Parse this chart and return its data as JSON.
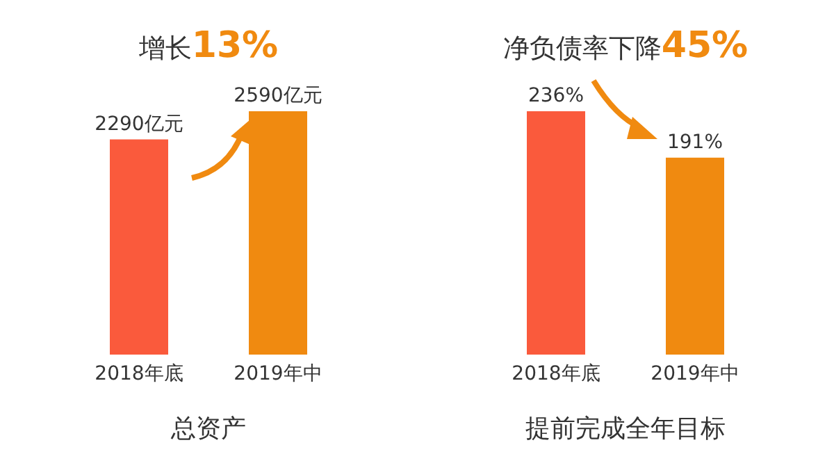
{
  "chart_data": [
    {
      "type": "bar",
      "title": "增长13%",
      "xlabel": "总资产",
      "categories": [
        "2018年底",
        "2019年中"
      ],
      "values": [
        2290,
        2590
      ],
      "colors": [
        "#fa5a3c",
        "#f08a10"
      ],
      "value_labels": [
        "2290亿元",
        "2590亿元"
      ]
    },
    {
      "type": "bar",
      "title": "净负债率下降45%",
      "xlabel": "提前完成全年目标",
      "categories": [
        "2018年底",
        "2019年中"
      ],
      "values": [
        236,
        191
      ],
      "colors": [
        "#fa5a3c",
        "#f08a10"
      ],
      "value_labels": [
        "236%",
        "191%"
      ]
    }
  ]
}
